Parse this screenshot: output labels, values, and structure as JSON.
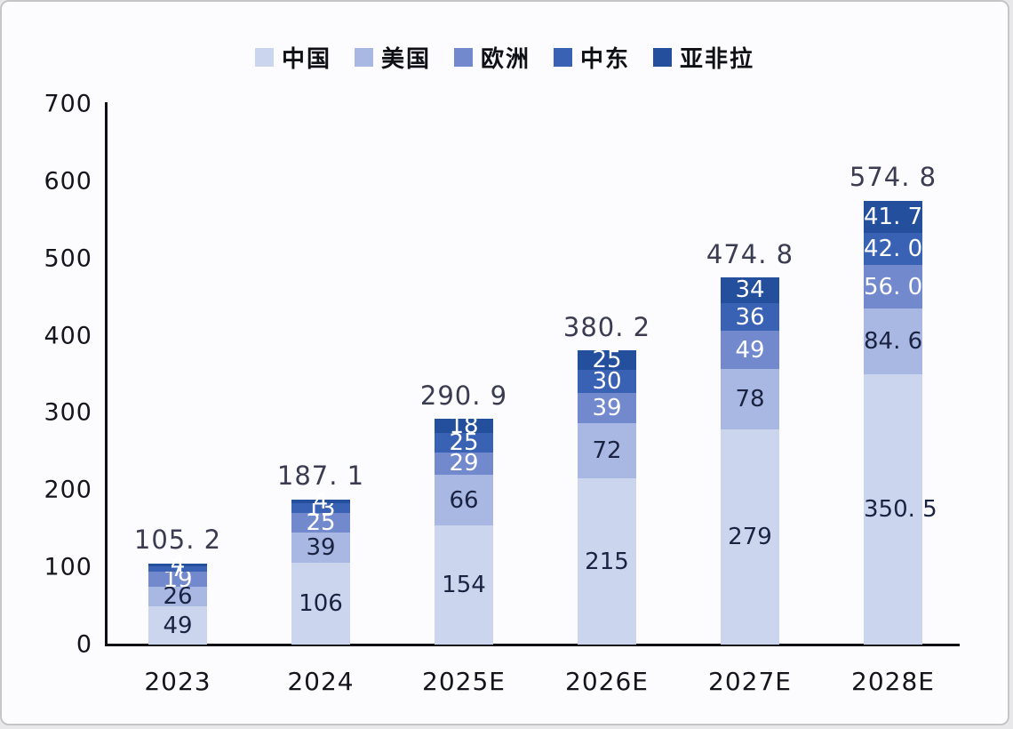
{
  "colors": {
    "background": "#fcfcff",
    "frame_border": "#c6c6ca",
    "axis": "#0e0e14",
    "axis_text": "#14141c",
    "total_text": "#3b3b52",
    "dark_segment_text": "#1b2342",
    "light_segment_text": "#ffffff",
    "series": {
      "china": "#ccd5ee",
      "usa": "#a9b8e3",
      "europe": "#7389cd",
      "middle_east": "#3a62b4",
      "asia_africa_latam": "#234f9d"
    }
  },
  "legend": {
    "position": "top-center",
    "items": [
      {
        "label": "中国",
        "color": "#ccd5ee"
      },
      {
        "label": "美国",
        "color": "#a9b8e3"
      },
      {
        "label": "欧洲",
        "color": "#7389cd"
      },
      {
        "label": "中东",
        "color": "#3a62b4"
      },
      {
        "label": "亚非拉",
        "color": "#234f9d"
      }
    ]
  },
  "chart_data": {
    "type": "bar",
    "stacked": true,
    "title": "",
    "xlabel": "",
    "ylabel": "",
    "categories": [
      "2023",
      "2024",
      "2025E",
      "2026E",
      "2027E",
      "2028E"
    ],
    "series": [
      {
        "name": "中国",
        "color": "#ccd5ee",
        "values": [
          49,
          106,
          154,
          215,
          279,
          350.5
        ],
        "labels": [
          "49",
          "106",
          "154",
          "215",
          "279",
          "350. 5"
        ],
        "label_style": "dark"
      },
      {
        "name": "美国",
        "color": "#a9b8e3",
        "values": [
          26,
          39,
          66,
          72,
          78,
          84.6
        ],
        "labels": [
          "26",
          "39",
          "66",
          "72",
          "78",
          "84. 6"
        ],
        "label_style": "dark"
      },
      {
        "name": "欧洲",
        "color": "#7389cd",
        "values": [
          19,
          25,
          29,
          39,
          49,
          56.0
        ],
        "labels": [
          "19",
          "25",
          "29",
          "39",
          "49",
          "56. 0"
        ],
        "label_style": "light"
      },
      {
        "name": "中东",
        "color": "#3a62b4",
        "values": [
          7,
          13,
          25,
          30,
          36,
          42.0
        ],
        "labels": [
          "7",
          "13",
          "25",
          "30",
          "36",
          "42. 0"
        ],
        "label_style": "light"
      },
      {
        "name": "亚非拉",
        "color": "#234f9d",
        "values": [
          4.2,
          4.1,
          18,
          25,
          34,
          41.7
        ],
        "labels": [
          "4",
          "4",
          "18",
          "25",
          "34",
          "41. 7"
        ],
        "label_style": "light"
      }
    ],
    "totals": [
      105.2,
      187.1,
      290.9,
      380.2,
      474.8,
      574.8
    ],
    "total_labels": [
      "105. 2",
      "187. 1",
      "290. 9",
      "380. 2",
      "474. 8",
      "574. 8"
    ],
    "ylim": [
      0,
      700
    ],
    "ytick_step": 100,
    "yticks": [
      0,
      100,
      200,
      300,
      400,
      500,
      600,
      700
    ],
    "grid": false,
    "legend_position": "top"
  }
}
